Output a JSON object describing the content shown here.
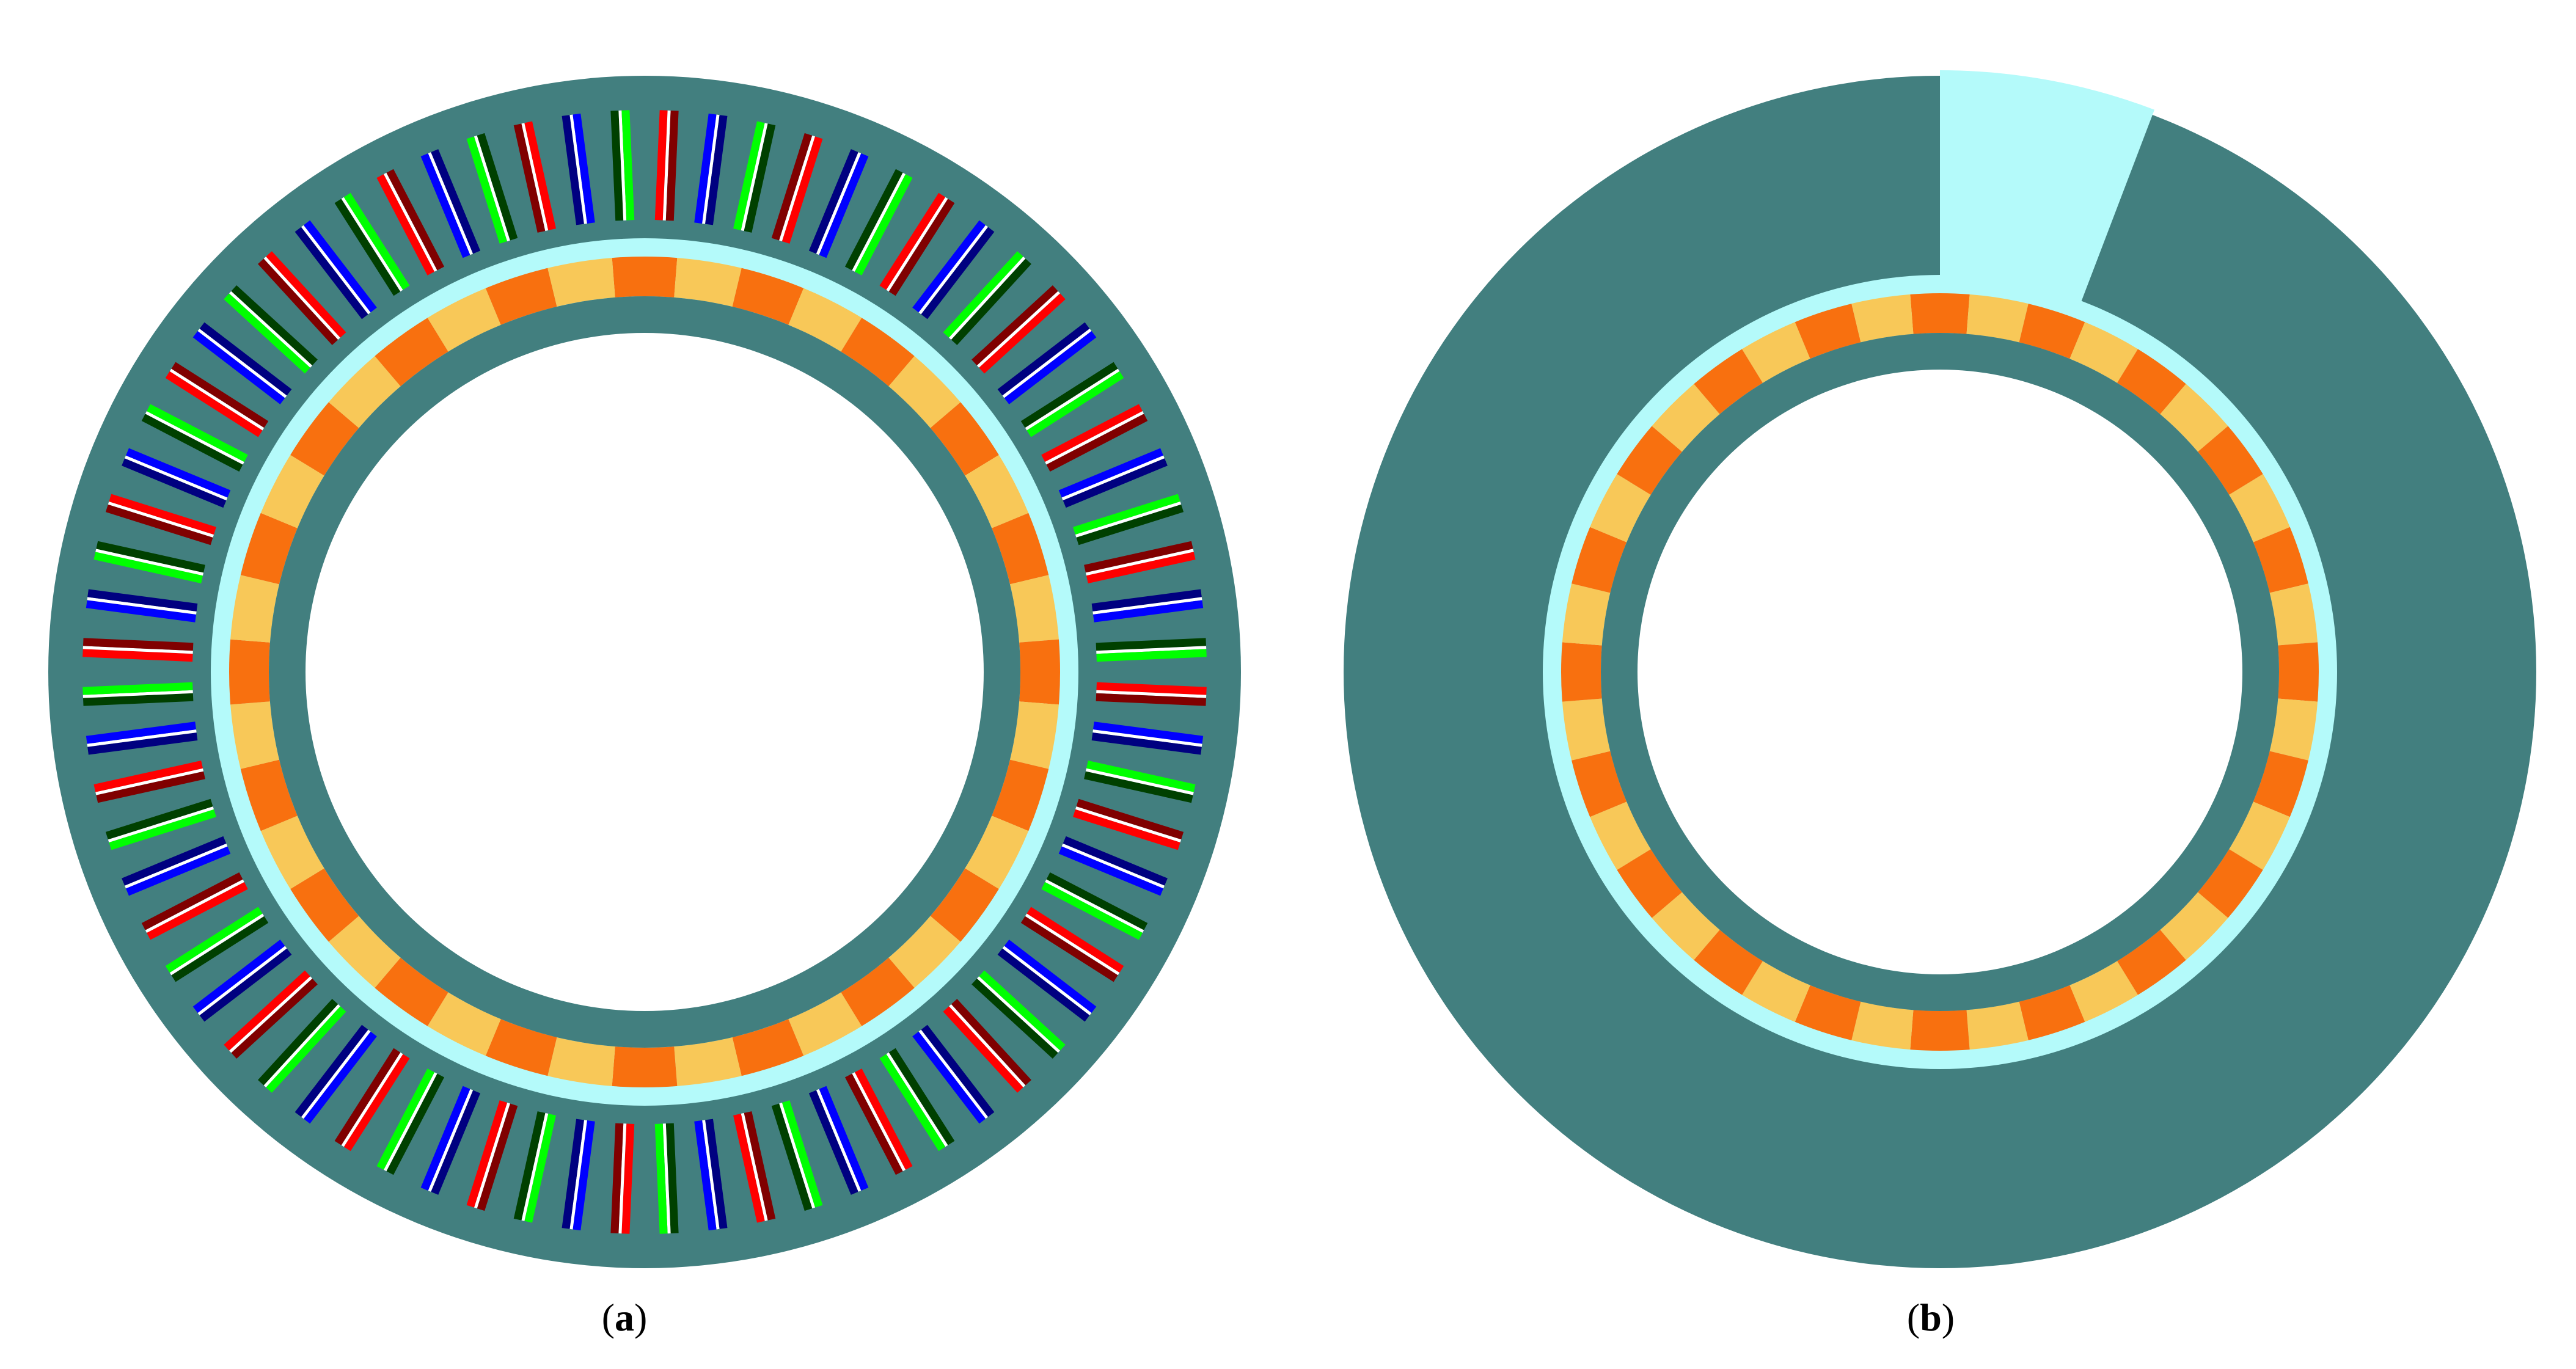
{
  "panels": [
    {
      "id": "a",
      "label": "a",
      "slot_count": 72,
      "magnet_segments": 40
    },
    {
      "id": "b",
      "label": "b",
      "magnet_segments": 40,
      "stator_gap_fraction": 0.058
    }
  ],
  "colors": {
    "iron": "#427f7f",
    "air_gap": "#b4fafa",
    "magnet_orange": "#f8700f",
    "magnet_yellow": "#f8c858",
    "background": "#ffffff",
    "winding_phases": [
      "#ff0000",
      "#0000ff",
      "#00ff00",
      "#800000",
      "#000080",
      "#004000"
    ]
  }
}
